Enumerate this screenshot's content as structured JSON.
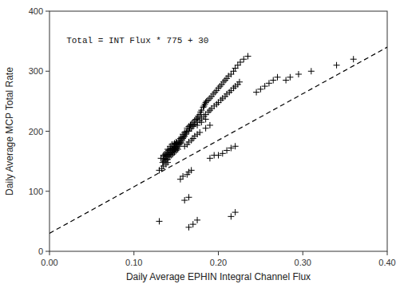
{
  "chart_data": {
    "type": "scatter",
    "xlabel": "Daily Average EPHIN Integral Channel Flux",
    "ylabel": "Daily Average MCP Total Rate",
    "annotation": "Total = INT Flux * 775 + 30",
    "xlim": [
      0.0,
      0.4
    ],
    "ylim": [
      0,
      400
    ],
    "xticks": [
      {
        "value": 0.0,
        "label": "0.00"
      },
      {
        "value": 0.1,
        "label": "0.10"
      },
      {
        "value": 0.2,
        "label": "0.20"
      },
      {
        "value": 0.3,
        "label": "0.30"
      },
      {
        "value": 0.4,
        "label": "0.40"
      }
    ],
    "yticks": [
      0,
      100,
      200,
      300,
      400
    ],
    "grid": false,
    "series": [
      {
        "type": "scatter",
        "marker": "plus",
        "color": "black",
        "x": [
          0.132,
          0.134,
          0.135,
          0.135,
          0.136,
          0.136,
          0.137,
          0.137,
          0.138,
          0.138,
          0.139,
          0.139,
          0.14,
          0.14,
          0.14,
          0.141,
          0.141,
          0.142,
          0.142,
          0.143,
          0.143,
          0.143,
          0.144,
          0.144,
          0.145,
          0.145,
          0.145,
          0.146,
          0.146,
          0.147,
          0.147,
          0.148,
          0.148,
          0.148,
          0.149,
          0.149,
          0.15,
          0.15,
          0.15,
          0.151,
          0.151,
          0.152,
          0.152,
          0.153,
          0.153,
          0.154,
          0.154,
          0.155,
          0.155,
          0.156,
          0.156,
          0.157,
          0.158,
          0.158,
          0.159,
          0.16,
          0.16,
          0.161,
          0.162,
          0.163,
          0.163,
          0.165,
          0.165,
          0.166,
          0.167,
          0.168,
          0.17,
          0.17,
          0.172,
          0.174,
          0.175,
          0.176,
          0.178,
          0.179,
          0.18,
          0.182,
          0.183,
          0.184,
          0.185,
          0.186,
          0.188,
          0.19,
          0.192,
          0.194,
          0.196,
          0.198,
          0.2,
          0.202,
          0.204,
          0.206,
          0.208,
          0.21,
          0.212,
          0.215,
          0.218,
          0.22,
          0.223,
          0.226,
          0.23,
          0.235,
          0.165,
          0.168,
          0.17,
          0.172,
          0.175,
          0.178,
          0.18,
          0.183,
          0.185,
          0.188,
          0.19,
          0.192,
          0.195,
          0.198,
          0.2,
          0.203,
          0.205,
          0.208,
          0.21,
          0.213,
          0.215,
          0.218,
          0.22,
          0.223,
          0.225,
          0.16,
          0.163,
          0.165,
          0.168,
          0.17,
          0.172,
          0.175,
          0.178,
          0.185,
          0.19,
          0.13,
          0.133,
          0.135,
          0.138,
          0.14,
          0.155,
          0.158,
          0.163,
          0.165,
          0.168,
          0.175,
          0.18,
          0.185,
          0.2,
          0.205,
          0.21,
          0.215,
          0.22,
          0.16,
          0.165,
          0.19,
          0.195,
          0.245,
          0.25,
          0.255,
          0.26,
          0.265,
          0.27,
          0.28,
          0.285,
          0.295,
          0.31,
          0.34,
          0.36,
          0.13,
          0.165,
          0.17,
          0.175,
          0.215,
          0.22
        ],
        "values": [
          155,
          148,
          153,
          160,
          150,
          158,
          155,
          162,
          152,
          160,
          158,
          165,
          153,
          162,
          170,
          160,
          168,
          157,
          165,
          162,
          170,
          175,
          160,
          168,
          165,
          172,
          178,
          162,
          170,
          168,
          175,
          165,
          173,
          180,
          170,
          178,
          168,
          175,
          182,
          172,
          180,
          170,
          178,
          175,
          182,
          178,
          185,
          180,
          188,
          182,
          190,
          185,
          188,
          195,
          190,
          192,
          198,
          195,
          198,
          200,
          205,
          202,
          208,
          205,
          210,
          212,
          210,
          215,
          218,
          220,
          222,
          225,
          228,
          232,
          235,
          240,
          242,
          245,
          248,
          250,
          252,
          255,
          258,
          262,
          265,
          268,
          272,
          275,
          278,
          282,
          285,
          288,
          292,
          295,
          300,
          305,
          310,
          315,
          320,
          325,
          200,
          205,
          208,
          212,
          215,
          218,
          222,
          225,
          228,
          232,
          235,
          238,
          242,
          245,
          248,
          252,
          255,
          258,
          262,
          265,
          268,
          272,
          275,
          278,
          282,
          175,
          178,
          182,
          185,
          188,
          192,
          195,
          198,
          205,
          210,
          135,
          138,
          142,
          145,
          148,
          120,
          125,
          128,
          132,
          135,
          210,
          215,
          220,
          160,
          163,
          168,
          172,
          175,
          85,
          90,
          155,
          160,
          265,
          270,
          275,
          280,
          285,
          290,
          285,
          290,
          295,
          300,
          310,
          320,
          50,
          40,
          45,
          52,
          58,
          65
        ]
      },
      {
        "type": "line",
        "line_style": "dashed",
        "color": "black",
        "x": [
          0.0,
          0.4
        ],
        "values": [
          30,
          340
        ]
      }
    ]
  }
}
